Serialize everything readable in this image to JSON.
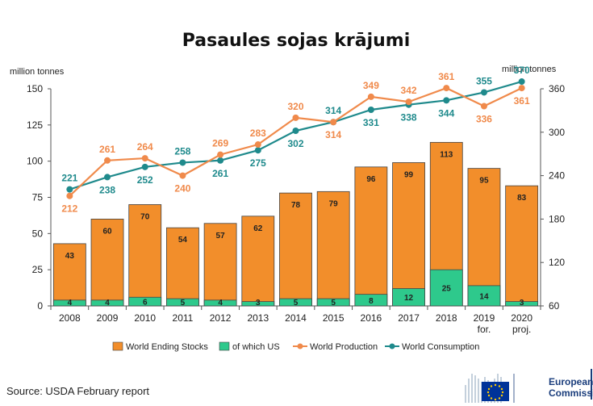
{
  "title": "Pasaules sojas krājumi",
  "left_axis_unit": "million tonnes",
  "right_axis_unit": "million tonnes",
  "source": "Source: USDA February report",
  "logo": {
    "line1": "European",
    "line2": "Commission"
  },
  "colors": {
    "stocks": "#F28E2B",
    "us": "#2EC98C",
    "production": "#F08A4B",
    "consumption": "#1F8A8C"
  },
  "chart_data": {
    "type": "bar+line",
    "categories": [
      "2008",
      "2009",
      "2010",
      "2011",
      "2012",
      "2013",
      "2014",
      "2015",
      "2016",
      "2017",
      "2018",
      "2019\nfor.",
      "2020\nproj."
    ],
    "y_left": {
      "min": 0,
      "max": 150,
      "ticks": [
        0,
        25,
        50,
        75,
        100,
        125,
        150
      ]
    },
    "y_right": {
      "min": 60,
      "max": 360,
      "ticks": [
        60,
        120,
        180,
        240,
        300,
        360
      ]
    },
    "series": [
      {
        "name": "World Ending Stocks",
        "axis": "left",
        "type": "bar",
        "values": [
          43,
          60,
          70,
          54,
          57,
          62,
          78,
          79,
          96,
          99,
          113,
          95,
          83
        ]
      },
      {
        "name": "of which US",
        "axis": "left",
        "type": "bar",
        "values": [
          4,
          4,
          6,
          5,
          4,
          3,
          5,
          5,
          8,
          12,
          25,
          14,
          3
        ]
      },
      {
        "name": "World Production",
        "axis": "right",
        "type": "line",
        "values": [
          212,
          261,
          264,
          240,
          269,
          283,
          320,
          314,
          349,
          342,
          361,
          336,
          361
        ]
      },
      {
        "name": "World Consumption",
        "axis": "right",
        "type": "line",
        "values": [
          221,
          238,
          252,
          258,
          261,
          275,
          302,
          314,
          331,
          338,
          344,
          355,
          370
        ]
      }
    ],
    "legend_position": "bottom"
  }
}
